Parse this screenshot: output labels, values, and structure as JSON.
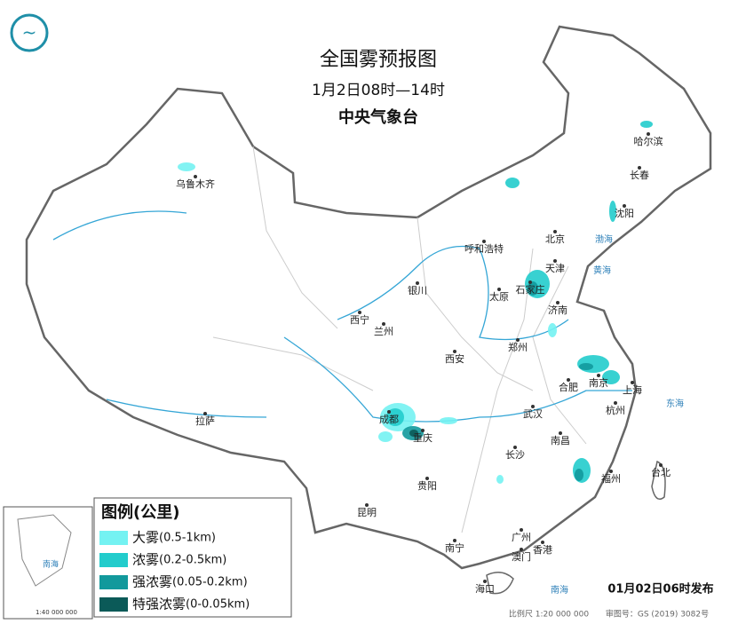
{
  "header": {
    "title": "全国雾预报图",
    "time_range": "1月2日08时—14时",
    "issuer": "中央气象台"
  },
  "legend": {
    "title": "图例(公里)",
    "items": [
      {
        "label": "大雾",
        "range": "(0.5-1km)",
        "color": "#74f2f2"
      },
      {
        "label": "浓雾",
        "range": "(0.2-0.5km)",
        "color": "#22cccc"
      },
      {
        "label": "强浓雾",
        "range": "(0.05-0.2km)",
        "color": "#12999c"
      },
      {
        "label": "特强浓雾",
        "range": "(0-0.05km)",
        "color": "#0b5a58"
      }
    ]
  },
  "cities": [
    "乌鲁木齐",
    "哈尔滨",
    "长春",
    "沈阳",
    "北京",
    "天津",
    "呼和浩特",
    "石家庄",
    "太原",
    "银川",
    "济南",
    "西宁",
    "兰州",
    "郑州",
    "西安",
    "南京",
    "合肥",
    "上海",
    "杭州",
    "武汉",
    "成都",
    "重庆",
    "拉萨",
    "长沙",
    "南昌",
    "福州",
    "贵阳",
    "昆明",
    "台北",
    "南宁",
    "广州",
    "澳门",
    "香港",
    "海口"
  ],
  "seas": [
    "渤海",
    "黄海",
    "东海",
    "南海"
  ],
  "inset": {
    "sea": "南海",
    "scale": "1:40 000 000"
  },
  "footer": {
    "issued": "01月02日06时发布",
    "scale": "比例尺 1:20 000 000",
    "approval": "审图号：GS (2019) 3082号"
  }
}
